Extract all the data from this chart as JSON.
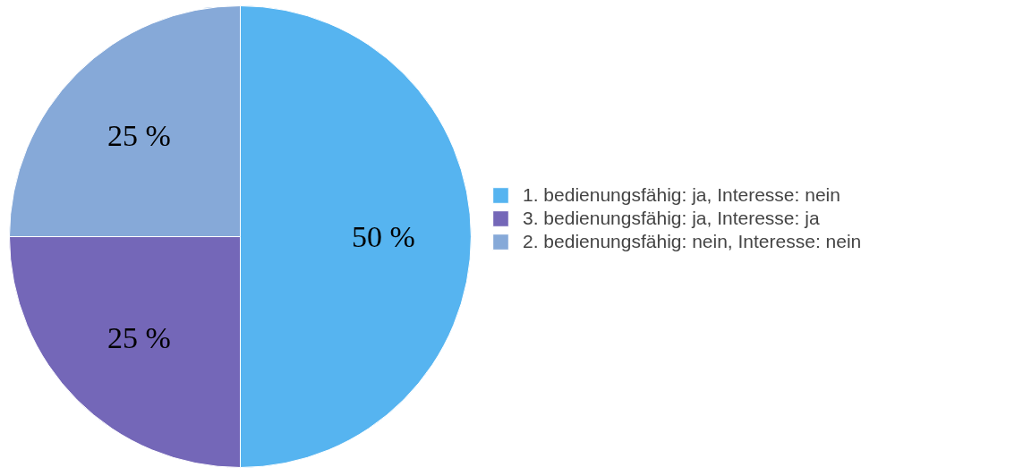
{
  "chart_data": {
    "type": "pie",
    "categories": [
      "1. bedienungsfähig: ja, Interesse: nein",
      "3. bedienungsfähig: ja, Interesse: ja",
      "2. bedienungsfähig: nein, Interesse: nein"
    ],
    "values": [
      50,
      25,
      25
    ],
    "colors": [
      "#56b4f0",
      "#7467b8",
      "#86a9d8"
    ],
    "value_labels": [
      "50 %",
      "25 %",
      "25 %"
    ],
    "legend": "right"
  }
}
